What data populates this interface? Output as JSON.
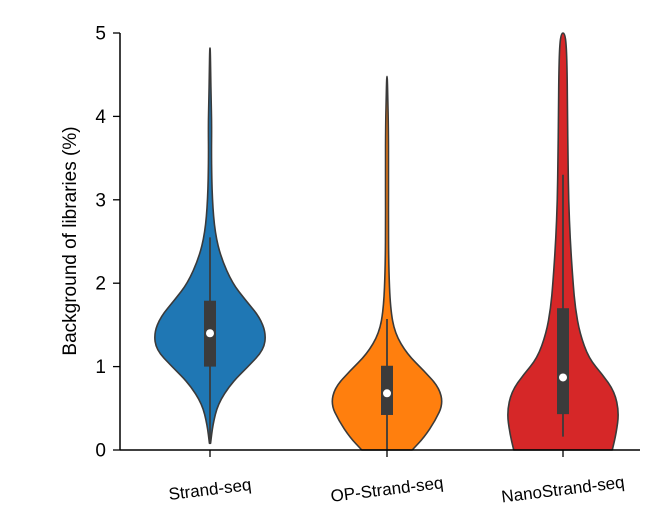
{
  "chart_data": {
    "type": "violin",
    "title": "",
    "ylabel": "Background of libraries (%)",
    "xlabel": "",
    "ylim": [
      0,
      5
    ],
    "yticks": [
      0,
      1,
      2,
      3,
      4,
      5
    ],
    "grid": false,
    "categories": [
      "Strand-seq",
      "OP-Strand-seq",
      "NanoStrand-seq"
    ],
    "colors": [
      "#1f77b4",
      "#ff7f0e",
      "#d62728"
    ],
    "series": [
      {
        "category": "Strand-seq",
        "min": 0.08,
        "q1": 1.0,
        "median": 1.4,
        "q3": 1.79,
        "whisker_high": 2.55,
        "max": 4.82,
        "density": [
          [
            0.08,
            0.01
          ],
          [
            0.3,
            0.05
          ],
          [
            0.55,
            0.14
          ],
          [
            0.8,
            0.38
          ],
          [
            1.0,
            0.68
          ],
          [
            1.2,
            0.96
          ],
          [
            1.4,
            1.0
          ],
          [
            1.6,
            0.88
          ],
          [
            1.8,
            0.63
          ],
          [
            2.0,
            0.4
          ],
          [
            2.3,
            0.2
          ],
          [
            2.6,
            0.09
          ],
          [
            3.0,
            0.04
          ],
          [
            3.5,
            0.025
          ],
          [
            3.9,
            0.03
          ],
          [
            4.2,
            0.02
          ],
          [
            4.5,
            0.012
          ],
          [
            4.82,
            0.005
          ]
        ]
      },
      {
        "category": "OP-Strand-seq",
        "min": 0.0,
        "q1": 0.42,
        "median": 0.68,
        "q3": 1.01,
        "whisker_high": 1.57,
        "max": 4.48,
        "density": [
          [
            0.0,
            0.45
          ],
          [
            0.15,
            0.66
          ],
          [
            0.35,
            0.86
          ],
          [
            0.55,
            1.0
          ],
          [
            0.75,
            0.93
          ],
          [
            0.95,
            0.66
          ],
          [
            1.15,
            0.36
          ],
          [
            1.4,
            0.14
          ],
          [
            1.7,
            0.06
          ],
          [
            2.2,
            0.03
          ],
          [
            2.8,
            0.025
          ],
          [
            3.4,
            0.028
          ],
          [
            3.9,
            0.024
          ],
          [
            4.2,
            0.015
          ],
          [
            4.48,
            0.005
          ]
        ]
      },
      {
        "category": "NanoStrand-seq",
        "min": 0.16,
        "q1": 0.43,
        "median": 0.87,
        "q3": 1.7,
        "whisker_high": 3.3,
        "max": 5.0,
        "density": [
          [
            0.0,
            0.88
          ],
          [
            0.2,
            0.95
          ],
          [
            0.45,
            1.0
          ],
          [
            0.7,
            0.92
          ],
          [
            0.9,
            0.71
          ],
          [
            1.1,
            0.46
          ],
          [
            1.4,
            0.3
          ],
          [
            1.7,
            0.22
          ],
          [
            2.0,
            0.18
          ],
          [
            2.5,
            0.13
          ],
          [
            3.0,
            0.1
          ],
          [
            3.5,
            0.09
          ],
          [
            4.0,
            0.08
          ],
          [
            4.5,
            0.075
          ],
          [
            4.85,
            0.06
          ],
          [
            5.0,
            0.03
          ]
        ]
      }
    ]
  }
}
